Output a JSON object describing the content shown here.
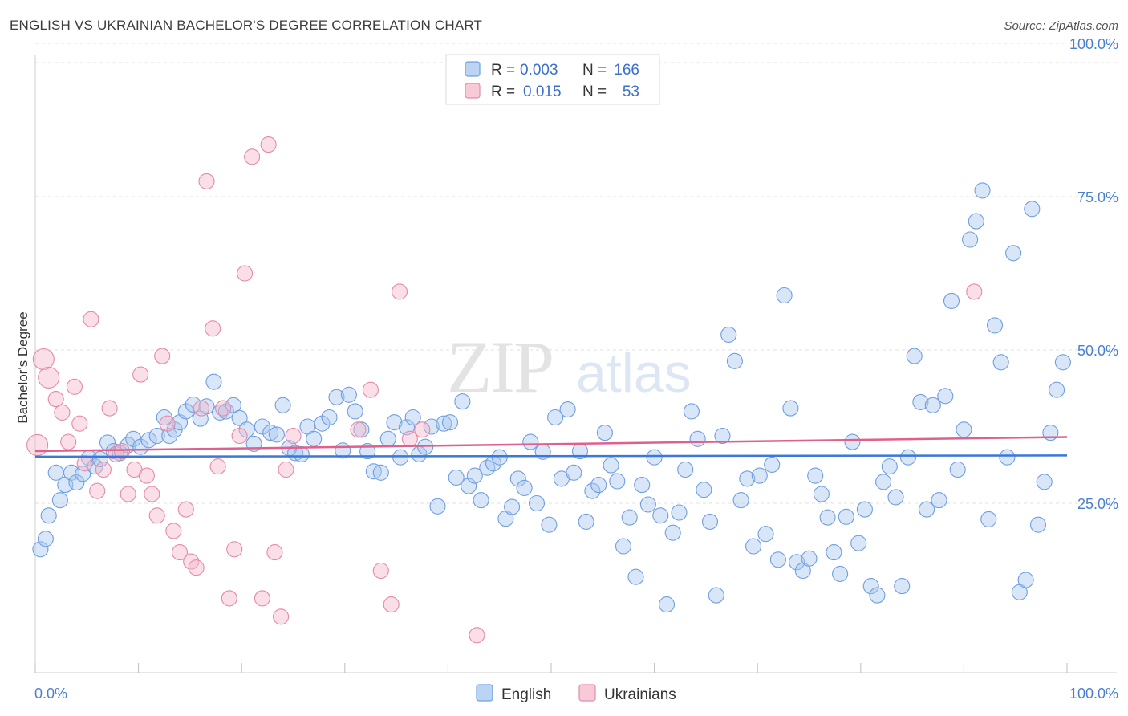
{
  "chart_data": {
    "type": "scatter",
    "title": "ENGLISH VS UKRAINIAN BACHELOR'S DEGREE CORRELATION CHART",
    "source": "Source: ZipAtlas.com",
    "ylabel": "Bachelor's Degree",
    "xlim": [
      0,
      100
    ],
    "ylim": [
      0,
      100
    ],
    "x_tick_labels": [
      "0.0%",
      "100.0%"
    ],
    "y_ticks": [
      25,
      50,
      75,
      100
    ],
    "y_tick_labels": [
      "25.0%",
      "50.0%",
      "75.0%",
      "100.0%"
    ],
    "watermark": {
      "zip": "ZIP",
      "atlas": "atlas"
    },
    "stats_legend": {
      "r_label": "R =",
      "n_label": "N =",
      "rows": [
        {
          "series": "English",
          "r": "0.003",
          "n": "166",
          "color": "#a9c7f0"
        },
        {
          "series": "Ukrainians",
          "r": "0.015",
          "n": "53",
          "color": "#f5b8cb"
        }
      ]
    },
    "series": [
      {
        "name": "English",
        "color": "#a9c7f0",
        "stroke": "#6f9fe0",
        "trend_color": "#3b78d8",
        "trend": [
          [
            0,
            32.6
          ],
          [
            100,
            32.8
          ]
        ],
        "points": [
          [
            0.5,
            17.5
          ],
          [
            1.0,
            19.2
          ],
          [
            1.3,
            23.0
          ],
          [
            2.0,
            30.0
          ],
          [
            2.4,
            25.5
          ],
          [
            2.9,
            28.0
          ],
          [
            3.5,
            30.0
          ],
          [
            4.0,
            28.4
          ],
          [
            4.6,
            29.8
          ],
          [
            5.2,
            32.4
          ],
          [
            5.8,
            31.0
          ],
          [
            6.3,
            32.2
          ],
          [
            7.0,
            34.9
          ],
          [
            7.6,
            33.5
          ],
          [
            8.2,
            33.2
          ],
          [
            9.0,
            34.5
          ],
          [
            9.5,
            35.5
          ],
          [
            10.2,
            34.2
          ],
          [
            11.0,
            35.3
          ],
          [
            11.8,
            36.0
          ],
          [
            12.5,
            39.0
          ],
          [
            13.0,
            36.0
          ],
          [
            13.5,
            37.0
          ],
          [
            14.0,
            38.2
          ],
          [
            14.6,
            40.0
          ],
          [
            15.3,
            41.1
          ],
          [
            16.0,
            38.8
          ],
          [
            16.6,
            40.8
          ],
          [
            17.3,
            44.8
          ],
          [
            17.9,
            39.8
          ],
          [
            18.5,
            40.0
          ],
          [
            19.2,
            41.0
          ],
          [
            19.8,
            38.9
          ],
          [
            20.5,
            37.0
          ],
          [
            21.2,
            34.7
          ],
          [
            22.0,
            37.5
          ],
          [
            22.8,
            36.5
          ],
          [
            23.4,
            36.2
          ],
          [
            24.0,
            41.0
          ],
          [
            24.6,
            34.0
          ],
          [
            25.2,
            33.2
          ],
          [
            25.8,
            33.0
          ],
          [
            26.4,
            37.5
          ],
          [
            27.0,
            35.5
          ],
          [
            27.8,
            38.0
          ],
          [
            28.5,
            39.0
          ],
          [
            29.2,
            42.3
          ],
          [
            29.8,
            33.6
          ],
          [
            30.4,
            42.7
          ],
          [
            31.0,
            40.0
          ],
          [
            31.6,
            37.0
          ],
          [
            32.2,
            33.5
          ],
          [
            32.8,
            30.2
          ],
          [
            33.5,
            30.0
          ],
          [
            34.2,
            35.5
          ],
          [
            34.8,
            38.2
          ],
          [
            35.4,
            32.5
          ],
          [
            36.0,
            37.4
          ],
          [
            36.6,
            39.0
          ],
          [
            37.2,
            33.0
          ],
          [
            37.8,
            34.2
          ],
          [
            38.4,
            37.5
          ],
          [
            39.0,
            24.5
          ],
          [
            39.6,
            38.0
          ],
          [
            40.2,
            38.2
          ],
          [
            40.8,
            29.2
          ],
          [
            41.4,
            41.6
          ],
          [
            42.0,
            27.8
          ],
          [
            42.6,
            29.5
          ],
          [
            43.2,
            25.5
          ],
          [
            43.8,
            30.8
          ],
          [
            44.4,
            31.5
          ],
          [
            45.0,
            32.5
          ],
          [
            45.6,
            22.5
          ],
          [
            46.2,
            24.4
          ],
          [
            46.8,
            29.0
          ],
          [
            47.4,
            27.5
          ],
          [
            48.0,
            35.0
          ],
          [
            48.6,
            25.0
          ],
          [
            49.2,
            33.4
          ],
          [
            49.8,
            21.5
          ],
          [
            50.4,
            39.0
          ],
          [
            51.0,
            29.0
          ],
          [
            51.6,
            40.3
          ],
          [
            52.2,
            30.0
          ],
          [
            52.8,
            33.5
          ],
          [
            53.4,
            22.0
          ],
          [
            54.0,
            27.0
          ],
          [
            54.6,
            28.0
          ],
          [
            55.2,
            36.5
          ],
          [
            55.8,
            31.2
          ],
          [
            56.4,
            28.6
          ],
          [
            57.0,
            18.0
          ],
          [
            57.6,
            22.7
          ],
          [
            58.2,
            13.0
          ],
          [
            58.8,
            28.0
          ],
          [
            59.4,
            24.8
          ],
          [
            60.0,
            32.5
          ],
          [
            60.6,
            23.0
          ],
          [
            61.2,
            8.5
          ],
          [
            61.8,
            20.2
          ],
          [
            62.4,
            23.5
          ],
          [
            63.0,
            30.5
          ],
          [
            63.6,
            40.0
          ],
          [
            64.2,
            35.5
          ],
          [
            64.8,
            27.2
          ],
          [
            65.4,
            22.0
          ],
          [
            66.0,
            10.0
          ],
          [
            66.6,
            36.0
          ],
          [
            67.2,
            52.5
          ],
          [
            67.8,
            48.2
          ],
          [
            68.4,
            25.5
          ],
          [
            69.0,
            29.0
          ],
          [
            69.6,
            18.0
          ],
          [
            70.2,
            29.5
          ],
          [
            70.8,
            20.0
          ],
          [
            71.4,
            31.3
          ],
          [
            72.0,
            15.8
          ],
          [
            72.6,
            58.9
          ],
          [
            73.2,
            40.5
          ],
          [
            73.8,
            15.4
          ],
          [
            74.4,
            14.0
          ],
          [
            75.0,
            16.0
          ],
          [
            75.6,
            29.5
          ],
          [
            76.2,
            26.5
          ],
          [
            76.8,
            22.7
          ],
          [
            77.4,
            17.0
          ],
          [
            78.0,
            13.5
          ],
          [
            78.6,
            22.8
          ],
          [
            79.2,
            35.0
          ],
          [
            79.8,
            18.5
          ],
          [
            80.4,
            24.0
          ],
          [
            81.0,
            11.5
          ],
          [
            81.6,
            10.0
          ],
          [
            82.2,
            28.5
          ],
          [
            82.8,
            31.0
          ],
          [
            83.4,
            26.0
          ],
          [
            84.0,
            11.5
          ],
          [
            84.6,
            32.5
          ],
          [
            85.2,
            49.0
          ],
          [
            85.8,
            41.5
          ],
          [
            86.4,
            24.0
          ],
          [
            87.0,
            41.0
          ],
          [
            87.6,
            25.5
          ],
          [
            88.2,
            42.5
          ],
          [
            88.8,
            58.0
          ],
          [
            89.4,
            30.5
          ],
          [
            90.0,
            37.0
          ],
          [
            90.6,
            68.0
          ],
          [
            91.2,
            71.0
          ],
          [
            91.8,
            76.0
          ],
          [
            92.4,
            22.4
          ],
          [
            93.0,
            54.0
          ],
          [
            93.6,
            48.0
          ],
          [
            94.2,
            32.5
          ],
          [
            94.8,
            65.8
          ],
          [
            95.4,
            10.5
          ],
          [
            96.0,
            12.5
          ],
          [
            96.6,
            73.0
          ],
          [
            97.2,
            21.5
          ],
          [
            97.8,
            28.5
          ],
          [
            98.4,
            36.5
          ],
          [
            99.0,
            43.5
          ],
          [
            99.6,
            48.0
          ]
        ]
      },
      {
        "name": "Ukrainians",
        "color": "#f5b8cb",
        "stroke": "#e48aa8",
        "trend_color": "#e0608a",
        "trend": [
          [
            0,
            33.5
          ],
          [
            100,
            35.8
          ]
        ],
        "points": [
          [
            0.2,
            34.5
          ],
          [
            0.8,
            48.5
          ],
          [
            1.3,
            45.5
          ],
          [
            2.0,
            42.0
          ],
          [
            2.6,
            39.8
          ],
          [
            3.2,
            35.0
          ],
          [
            3.8,
            44.0
          ],
          [
            4.3,
            38.0
          ],
          [
            4.8,
            31.5
          ],
          [
            5.4,
            55.0
          ],
          [
            6.0,
            27.0
          ],
          [
            6.6,
            30.5
          ],
          [
            7.2,
            40.5
          ],
          [
            7.8,
            33.0
          ],
          [
            8.4,
            33.5
          ],
          [
            9.0,
            26.5
          ],
          [
            9.6,
            30.5
          ],
          [
            10.2,
            46.0
          ],
          [
            10.8,
            29.5
          ],
          [
            11.3,
            26.5
          ],
          [
            11.8,
            23.0
          ],
          [
            12.3,
            49.0
          ],
          [
            12.8,
            38.0
          ],
          [
            13.4,
            20.5
          ],
          [
            14.0,
            17.0
          ],
          [
            14.6,
            24.0
          ],
          [
            15.1,
            15.5
          ],
          [
            15.6,
            14.5
          ],
          [
            16.1,
            40.5
          ],
          [
            16.6,
            77.5
          ],
          [
            17.2,
            53.5
          ],
          [
            17.7,
            31.0
          ],
          [
            18.2,
            40.5
          ],
          [
            18.8,
            9.5
          ],
          [
            19.3,
            17.5
          ],
          [
            19.8,
            36.0
          ],
          [
            20.3,
            62.5
          ],
          [
            21.0,
            81.5
          ],
          [
            22.0,
            9.5
          ],
          [
            22.6,
            83.5
          ],
          [
            23.2,
            17.0
          ],
          [
            23.8,
            6.5
          ],
          [
            24.3,
            30.5
          ],
          [
            25.0,
            36.0
          ],
          [
            31.3,
            37.0
          ],
          [
            32.5,
            43.5
          ],
          [
            33.5,
            14.0
          ],
          [
            34.5,
            8.5
          ],
          [
            35.3,
            59.5
          ],
          [
            42.8,
            3.5
          ],
          [
            91.0,
            59.5
          ],
          [
            37.5,
            37.0
          ],
          [
            36.3,
            35.5
          ]
        ]
      }
    ]
  }
}
